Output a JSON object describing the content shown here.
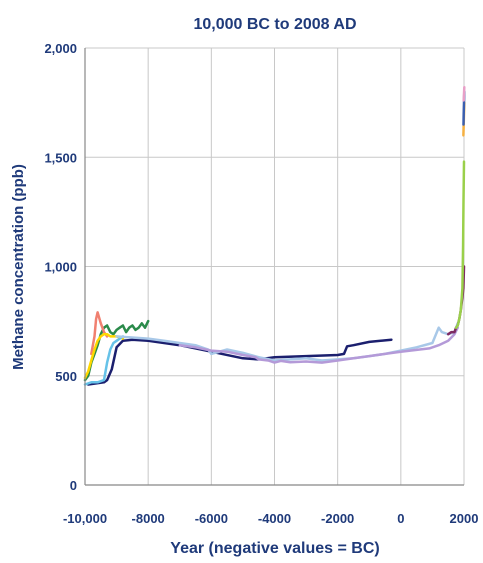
{
  "chart_data": {
    "type": "line",
    "title": "10,000 BC to 2008 AD",
    "xlabel": "Year (negative values = BC)",
    "ylabel": "Methane concentration (ppb)",
    "xlim": [
      -10000,
      2000
    ],
    "ylim": [
      0,
      2000
    ],
    "grid": true,
    "legend": "none",
    "x_ticks": [
      -10000,
      -8000,
      -6000,
      -4000,
      -2000,
      0,
      2000
    ],
    "x_tick_labels": [
      "-10,000",
      "-8000",
      "-6000",
      "-4000",
      "-2000",
      "0",
      "2000"
    ],
    "y_ticks": [
      0,
      500,
      1000,
      1500,
      2000
    ],
    "y_tick_labels": [
      "0",
      "500",
      "1,000",
      "1,500",
      "2,000"
    ],
    "series": [
      {
        "color": "#1b1f6e",
        "x": [
          -9900,
          -9400,
          -9300,
          -9150,
          -9000,
          -8800,
          -8500,
          -8000,
          -7000,
          -6000,
          -5000,
          -4500,
          -4000,
          -3000,
          -2000,
          -1800,
          -1700,
          -1500,
          -1000,
          -300
        ],
        "y": [
          460,
          470,
          480,
          530,
          630,
          660,
          665,
          660,
          640,
          610,
          580,
          575,
          585,
          590,
          595,
          600,
          635,
          640,
          655,
          665
        ]
      },
      {
        "color": "#2a8a4a",
        "x": [
          -10000,
          -9900,
          -9800,
          -9700,
          -9600,
          -9500,
          -9400,
          -9300,
          -9200,
          -9100,
          -9000,
          -8900,
          -8800,
          -8700,
          -8600,
          -8500,
          -8400,
          -8300,
          -8200,
          -8100,
          -8000
        ],
        "y": [
          480,
          500,
          560,
          600,
          640,
          690,
          720,
          730,
          700,
          690,
          710,
          720,
          730,
          700,
          720,
          730,
          710,
          720,
          740,
          720,
          750
        ]
      },
      {
        "color": "#f08070",
        "x": [
          -9800,
          -9700,
          -9650,
          -9600,
          -9500,
          -9400,
          -9300
        ],
        "y": [
          600,
          680,
          760,
          790,
          740,
          700,
          680
        ]
      },
      {
        "color": "#ffd700",
        "x": [
          -10000,
          -9900,
          -9800,
          -9700,
          -9600,
          -9500,
          -9400,
          -9300,
          -9200,
          -9000,
          -8800
        ],
        "y": [
          490,
          520,
          570,
          620,
          660,
          680,
          690,
          690,
          680,
          680,
          670
        ]
      },
      {
        "color": "#66c2e8",
        "x": [
          -10000,
          -9800,
          -9600,
          -9400,
          -9300,
          -9200,
          -9100,
          -9000,
          -8900,
          -8800
        ],
        "y": [
          460,
          470,
          470,
          480,
          560,
          620,
          650,
          660,
          670,
          680
        ]
      },
      {
        "color": "#a8c8e8",
        "x": [
          -9000,
          -8000,
          -7500,
          -7000,
          -6500,
          -6100,
          -6000,
          -5500,
          -5000,
          -4500,
          -4000,
          -3500,
          -3000,
          -2500,
          -2000,
          -1500,
          -1000,
          -500,
          0,
          500,
          1000,
          1200,
          1300,
          1500,
          1700,
          1800
        ],
        "y": [
          680,
          670,
          660,
          650,
          640,
          620,
          600,
          620,
          605,
          585,
          570,
          575,
          580,
          570,
          575,
          580,
          590,
          600,
          615,
          630,
          650,
          720,
          700,
          690,
          700,
          740
        ]
      },
      {
        "color": "#b49ad8",
        "x": [
          -7000,
          -6500,
          -6000,
          -5500,
          -5000,
          -4600,
          -4500,
          -4200,
          -4000,
          -3800,
          -3500,
          -3000,
          -2500,
          -2000,
          -1500,
          -1000,
          -500,
          0,
          300,
          600,
          900,
          1200,
          1500,
          1700,
          1800
        ],
        "y": [
          640,
          630,
          615,
          610,
          595,
          585,
          575,
          570,
          560,
          568,
          562,
          565,
          560,
          570,
          580,
          590,
          600,
          610,
          615,
          620,
          625,
          640,
          660,
          690,
          720
        ]
      },
      {
        "color": "#7e2a62",
        "x": [
          1500,
          1600,
          1700,
          1750,
          1800,
          1850,
          1900,
          1950,
          1980,
          2000
        ],
        "y": [
          690,
          700,
          700,
          720,
          730,
          760,
          800,
          860,
          900,
          1000
        ]
      },
      {
        "color": "#9ad04a",
        "x": [
          1750,
          1800,
          1850,
          1900,
          1950,
          1970,
          1985,
          2000
        ],
        "y": [
          720,
          730,
          760,
          800,
          900,
          1100,
          1300,
          1480
        ]
      },
      {
        "color": "#f5b041",
        "x": [
          1980,
          1990,
          2000,
          2008
        ],
        "y": [
          1600,
          1650,
          1700,
          1750
        ]
      },
      {
        "color": "#3a5fb0",
        "x": [
          1985,
          1990,
          2000,
          2008
        ],
        "y": [
          1650,
          1700,
          1750,
          1800
        ]
      },
      {
        "color": "#e8a0c8",
        "x": [
          1990,
          2000,
          2008
        ],
        "y": [
          1760,
          1790,
          1820
        ]
      }
    ]
  }
}
